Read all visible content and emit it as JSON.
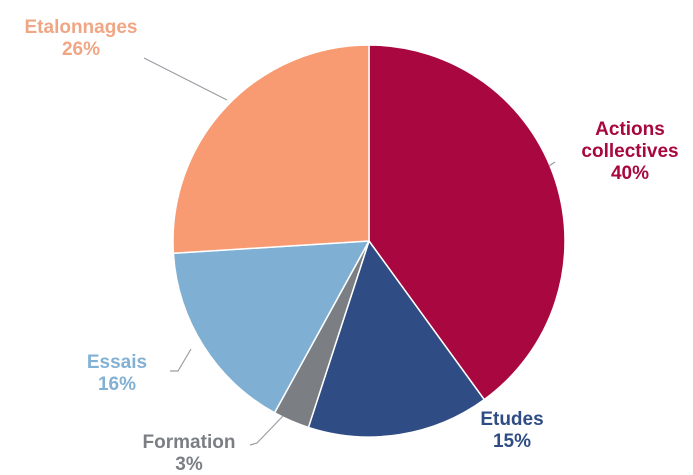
{
  "chart_data": {
    "type": "pie",
    "start_angle_deg": 0,
    "direction": "clockwise",
    "slices": [
      {
        "key": "actions",
        "lines": [
          "Actions",
          "collectives"
        ],
        "value": 40,
        "pct_label": "40%",
        "color": "#a8083f",
        "label_color": "#a8083f"
      },
      {
        "key": "etudes",
        "lines": [
          "Etudes"
        ],
        "value": 15,
        "pct_label": "15%",
        "color": "#2f4d84",
        "label_color": "#2f4d84"
      },
      {
        "key": "formation",
        "lines": [
          "Formation"
        ],
        "value": 3,
        "pct_label": "3%",
        "color": "#7b7f84",
        "label_color": "#7b7f84"
      },
      {
        "key": "essais",
        "lines": [
          "Essais"
        ],
        "value": 16,
        "pct_label": "16%",
        "color": "#7fb0d4",
        "label_color": "#82b1d4"
      },
      {
        "key": "etalonnages",
        "lines": [
          "Etalonnages"
        ],
        "value": 26,
        "pct_label": "26%",
        "color": "#f99b72",
        "label_color": "#f0a684"
      }
    ]
  }
}
